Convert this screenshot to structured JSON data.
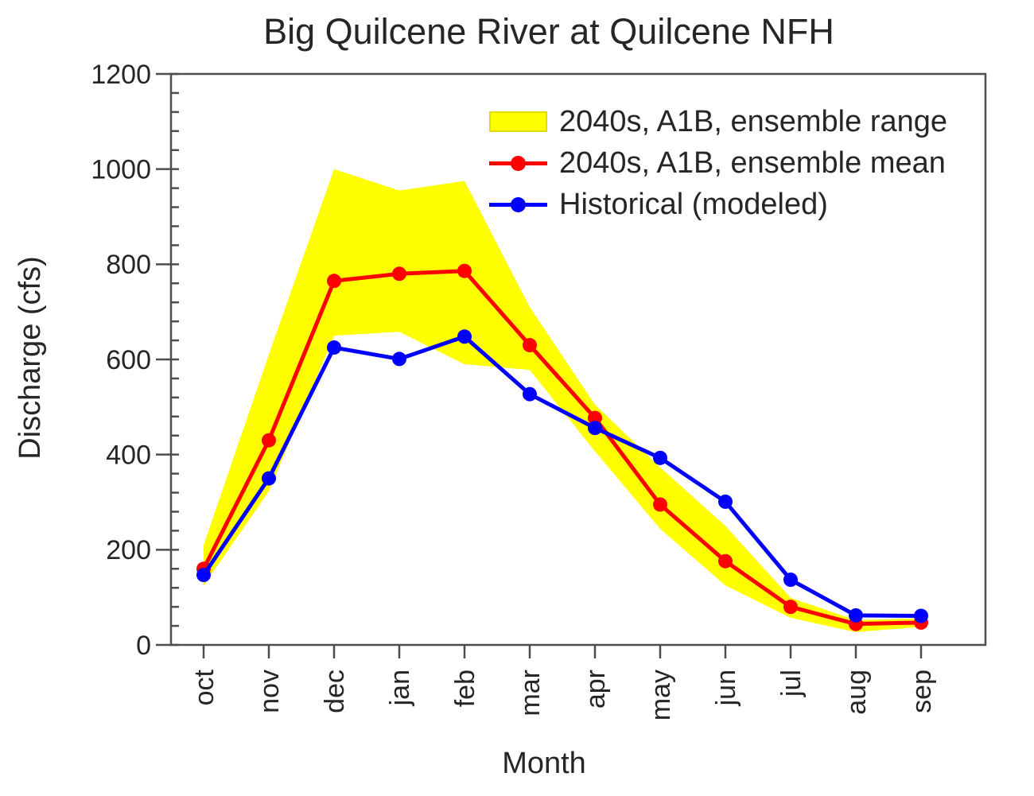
{
  "title": "Big Quilcene River at Quilcene NFH",
  "y_axis": {
    "label": "Discharge (cfs)",
    "min": 0,
    "max": 1200,
    "major_tick_step": 200,
    "minor_tick_step": 40,
    "major_tick_labels": [
      "0",
      "200",
      "400",
      "600",
      "800",
      "1000",
      "1200"
    ]
  },
  "x_axis": {
    "label": "Month",
    "tick_labels": [
      "oct",
      "nov",
      "dec",
      "jan",
      "feb",
      "mar",
      "apr",
      "may",
      "jun",
      "jul",
      "aug",
      "sep"
    ]
  },
  "legend": {
    "items": [
      {
        "label": "2040s, A1B, ensemble range",
        "swatch": "band",
        "color": "#ffff00"
      },
      {
        "label": "2040s, A1B, ensemble mean",
        "swatch": "line-dot",
        "color": "#ff0000"
      },
      {
        "label": "Historical (modeled)",
        "swatch": "line-dot",
        "color": "#0000ff"
      }
    ]
  },
  "colors": {
    "band": "#ffff00",
    "mean_2040s": "#ff0000",
    "historical": "#0000ff",
    "frame": "#4d4d4d",
    "text": "#262626",
    "background": "#ffffff"
  },
  "chart_data": {
    "type": "line",
    "title": "Big Quilcene River at Quilcene NFH",
    "xlabel": "Month",
    "ylabel": "Discharge (cfs)",
    "ylim": [
      0,
      1200
    ],
    "grid": false,
    "legend_position": "upper right",
    "categories": [
      "oct",
      "nov",
      "dec",
      "jan",
      "feb",
      "mar",
      "apr",
      "may",
      "jun",
      "jul",
      "aug",
      "sep"
    ],
    "band": {
      "name": "2040s, A1B, ensemble range",
      "color": "#ffff00",
      "upper": [
        210,
        610,
        1000,
        955,
        975,
        710,
        505,
        373,
        250,
        99,
        52,
        56
      ],
      "lower": [
        125,
        323,
        650,
        658,
        590,
        578,
        407,
        244,
        125,
        57,
        27,
        38
      ]
    },
    "series": [
      {
        "name": "2040s, A1B, ensemble mean",
        "color": "#ff0000",
        "marker": "circle",
        "values": [
          160,
          430,
          765,
          780,
          786,
          630,
          477,
          295,
          176,
          80,
          44,
          47
        ]
      },
      {
        "name": "Historical (modeled)",
        "color": "#0000ff",
        "marker": "circle",
        "values": [
          147,
          350,
          625,
          601,
          648,
          527,
          456,
          393,
          301,
          137,
          62,
          61
        ]
      }
    ]
  }
}
